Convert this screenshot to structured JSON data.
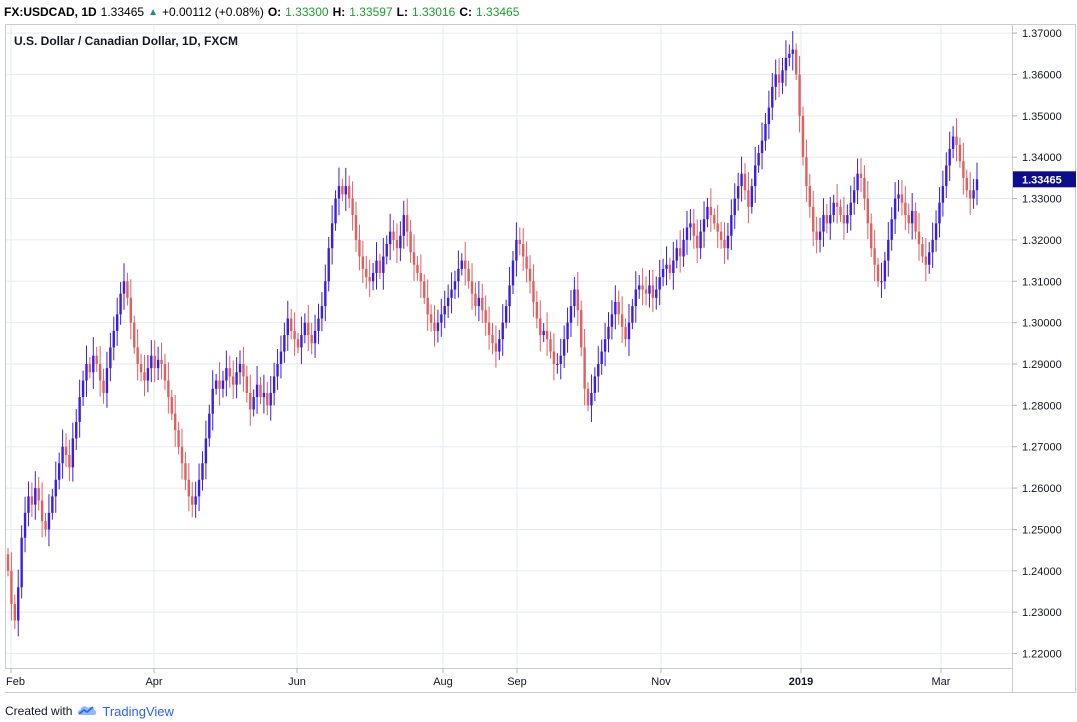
{
  "header": {
    "symbol": "FX:USDCAD, 1D",
    "last": "1.33465",
    "change": "+0.00112 (+0.08%)",
    "o_label": "O:",
    "o_value": "1.33300",
    "h_label": "H:",
    "h_value": "1.33597",
    "l_label": "L:",
    "l_value": "1.33016",
    "c_label": "C:",
    "c_value": "1.33465",
    "up_icon": "triangle-up-icon"
  },
  "footer": {
    "created_with": "Created with",
    "brand": "TradingView",
    "logo_icon": "cloud-logo-icon"
  },
  "colors": {
    "up": "#3a1ee6",
    "down": "#e06060",
    "grid": "#e4ebf2",
    "price_tag": "#0c0c8c"
  },
  "chart_data": {
    "type": "candlestick",
    "title": "U.S. Dollar / Canadian Dollar, 1D, FXCM",
    "ylim": [
      1.2165,
      1.3722
    ],
    "y_ticks": [
      "1.37000",
      "1.36000",
      "1.35000",
      "1.34000",
      "1.33000",
      "1.32000",
      "1.31000",
      "1.30000",
      "1.29000",
      "1.28000",
      "1.27000",
      "1.26000",
      "1.25000",
      "1.24000",
      "1.23000",
      "1.22000"
    ],
    "x_ticks": [
      "Feb",
      "Apr",
      "Jun",
      "Aug",
      "Sep",
      "Nov",
      "2019",
      "Mar"
    ],
    "bold_x_tick": "2019",
    "last_price_label": "1.33465",
    "last_price": 1.33465,
    "grid": true,
    "close_series": [
      1.24,
      1.232,
      1.228,
      1.236,
      1.248,
      1.254,
      1.258,
      1.256,
      1.26,
      1.257,
      1.252,
      1.25,
      1.254,
      1.258,
      1.262,
      1.266,
      1.27,
      1.268,
      1.265,
      1.272,
      1.276,
      1.282,
      1.286,
      1.29,
      1.288,
      1.292,
      1.29,
      1.286,
      1.283,
      1.289,
      1.294,
      1.298,
      1.302,
      1.307,
      1.31,
      1.306,
      1.3,
      1.294,
      1.29,
      1.288,
      1.286,
      1.289,
      1.292,
      1.289,
      1.291,
      1.29,
      1.286,
      1.282,
      1.278,
      1.274,
      1.27,
      1.266,
      1.262,
      1.258,
      1.256,
      1.258,
      1.262,
      1.266,
      1.272,
      1.278,
      1.284,
      1.286,
      1.284,
      1.286,
      1.289,
      1.287,
      1.285,
      1.288,
      1.29,
      1.287,
      1.283,
      1.279,
      1.282,
      1.285,
      1.282,
      1.283,
      1.28,
      1.283,
      1.287,
      1.29,
      1.293,
      1.297,
      1.301,
      1.298,
      1.296,
      1.294,
      1.297,
      1.3,
      1.297,
      1.295,
      1.298,
      1.301,
      1.304,
      1.31,
      1.318,
      1.324,
      1.33,
      1.333,
      1.331,
      1.333,
      1.33,
      1.326,
      1.32,
      1.316,
      1.313,
      1.311,
      1.31,
      1.312,
      1.315,
      1.312,
      1.316,
      1.319,
      1.322,
      1.32,
      1.318,
      1.321,
      1.326,
      1.322,
      1.317,
      1.314,
      1.312,
      1.31,
      1.306,
      1.302,
      1.3,
      1.298,
      1.3,
      1.302,
      1.304,
      1.306,
      1.308,
      1.31,
      1.313,
      1.315,
      1.313,
      1.31,
      1.307,
      1.304,
      1.306,
      1.303,
      1.3,
      1.297,
      1.295,
      1.293,
      1.296,
      1.3,
      1.304,
      1.309,
      1.315,
      1.32,
      1.319,
      1.316,
      1.313,
      1.31,
      1.305,
      1.301,
      1.297,
      1.298,
      1.296,
      1.293,
      1.29,
      1.29,
      1.292,
      1.296,
      1.3,
      1.304,
      1.308,
      1.303,
      1.294,
      1.284,
      1.28,
      1.283,
      1.287,
      1.29,
      1.293,
      1.296,
      1.299,
      1.302,
      1.305,
      1.302,
      1.299,
      1.296,
      1.3,
      1.304,
      1.308,
      1.309,
      1.308,
      1.307,
      1.309,
      1.306,
      1.308,
      1.311,
      1.313,
      1.314,
      1.312,
      1.315,
      1.318,
      1.316,
      1.32,
      1.323,
      1.324,
      1.321,
      1.318,
      1.322,
      1.325,
      1.328,
      1.326,
      1.324,
      1.322,
      1.32,
      1.318,
      1.321,
      1.326,
      1.33,
      1.333,
      1.336,
      1.332,
      1.328,
      1.333,
      1.338,
      1.341,
      1.344,
      1.348,
      1.352,
      1.357,
      1.36,
      1.358,
      1.361,
      1.364,
      1.365,
      1.366,
      1.36,
      1.35,
      1.34,
      1.333,
      1.328,
      1.322,
      1.32,
      1.322,
      1.326,
      1.324,
      1.326,
      1.329,
      1.328,
      1.326,
      1.324,
      1.326,
      1.329,
      1.332,
      1.336,
      1.335,
      1.33,
      1.324,
      1.318,
      1.314,
      1.31,
      1.31,
      1.315,
      1.32,
      1.325,
      1.33,
      1.331,
      1.329,
      1.326,
      1.324,
      1.327,
      1.322,
      1.319,
      1.316,
      1.314,
      1.317,
      1.32,
      1.324,
      1.329,
      1.333,
      1.338,
      1.342,
      1.345,
      1.343,
      1.339,
      1.335,
      1.332,
      1.33,
      1.332,
      1.33465
    ]
  }
}
